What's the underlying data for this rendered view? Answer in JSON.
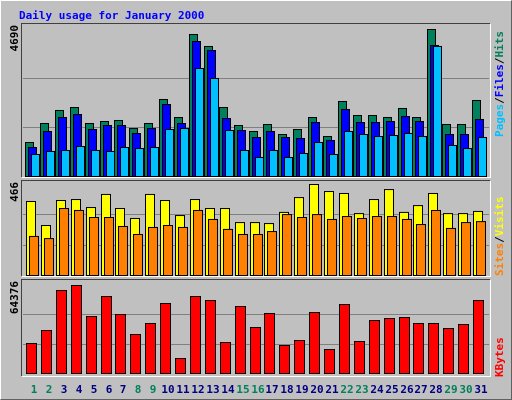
{
  "title": "Daily usage for January 2000",
  "legend_separator": "/",
  "chart_data": [
    {
      "type": "bar",
      "ylim": [
        0,
        4690
      ],
      "series": [
        {
          "name": "Hits",
          "color": "#00805c",
          "values": [
            1085,
            1691,
            2106,
            2201,
            1691,
            1755,
            1787,
            1531,
            1691,
            2457,
            1882,
            4530,
            4148,
            2201,
            1627,
            1436,
            1659,
            1340,
            1500,
            1882,
            1276,
            2393,
            1946,
            1946,
            1882,
            2170,
            1882,
            4690,
            1659,
            1659,
            2425
          ]
        },
        {
          "name": "Files",
          "color": "#0000ff",
          "values": [
            925,
            1436,
            1882,
            1978,
            1500,
            1627,
            1627,
            1372,
            1531,
            2297,
            1691,
            4307,
            4020,
            1850,
            1468,
            1244,
            1436,
            1244,
            1212,
            1723,
            1149,
            2138,
            1723,
            1723,
            1755,
            1914,
            1755,
            4180,
            1340,
            1340,
            1819
          ]
        },
        {
          "name": "Pages",
          "color": "#00c0ff",
          "values": [
            702,
            798,
            830,
            957,
            830,
            798,
            925,
            893,
            925,
            1500,
            1531,
            3446,
            3127,
            1468,
            830,
            606,
            830,
            606,
            734,
            1085,
            702,
            1436,
            1340,
            1276,
            1308,
            1372,
            1276,
            4148,
            989,
            893,
            1244
          ]
        }
      ]
    },
    {
      "type": "bar",
      "ylim": [
        0,
        466
      ],
      "series": [
        {
          "name": "Visits",
          "color": "#ffff00",
          "values": [
            379,
            256,
            384,
            389,
            348,
            415,
            343,
            292,
            415,
            384,
            307,
            389,
            343,
            343,
            271,
            271,
            266,
            323,
            399,
            466,
            430,
            420,
            317,
            389,
            440,
            323,
            358,
            420,
            317,
            317,
            328
          ]
        },
        {
          "name": "Sites",
          "color": "#ff8000",
          "values": [
            200,
            189,
            343,
            333,
            297,
            297,
            251,
            210,
            246,
            256,
            246,
            333,
            287,
            236,
            210,
            210,
            225,
            312,
            297,
            312,
            287,
            302,
            292,
            302,
            302,
            287,
            261,
            333,
            241,
            271,
            276
          ]
        }
      ]
    },
    {
      "type": "bar",
      "ylim": [
        0,
        64376
      ],
      "categories": [
        "1",
        "2",
        "3",
        "4",
        "5",
        "6",
        "7",
        "8",
        "9",
        "10",
        "11",
        "12",
        "13",
        "14",
        "15",
        "16",
        "17",
        "18",
        "19",
        "20",
        "21",
        "22",
        "23",
        "24",
        "25",
        "26",
        "27",
        "28",
        "29",
        "30",
        "31"
      ],
      "category_colors": [
        "#00805c",
        "#00805c",
        "#000080",
        "#000080",
        "#000080",
        "#000080",
        "#000080",
        "#00805c",
        "#00805c",
        "#000080",
        "#000080",
        "#000080",
        "#000080",
        "#000080",
        "#00805c",
        "#00805c",
        "#000080",
        "#000080",
        "#000080",
        "#000080",
        "#000080",
        "#00805c",
        "#00805c",
        "#000080",
        "#000080",
        "#000080",
        "#000080",
        "#000080",
        "#00805c",
        "#00805c",
        "#000080"
      ],
      "series": [
        {
          "name": "KBytes",
          "color": "#ff0000",
          "values": [
            21946,
            31457,
            60718,
            64376,
            41699,
            56330,
            43162,
            28531,
            36578,
            51209,
            10973,
            56330,
            53404,
            22678,
            49014,
            33651,
            43893,
            20483,
            24141,
            44625,
            17557,
            50477,
            23410,
            38772,
            40235,
            40966,
            36578,
            36578,
            32920,
            35846,
            53404
          ]
        }
      ]
    }
  ]
}
